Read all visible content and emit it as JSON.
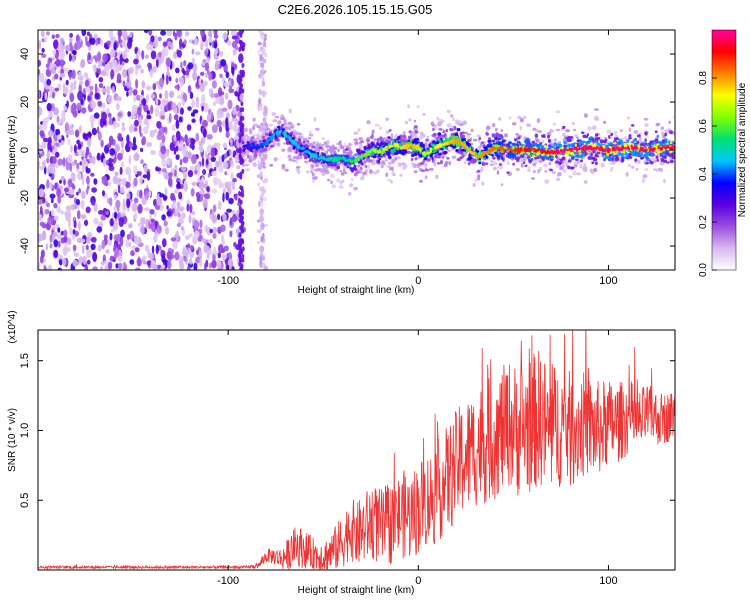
{
  "title": "C2E6.2026.105.15.15.G05",
  "chart_data": [
    {
      "type": "heatmap",
      "name": "spectrogram",
      "xlabel": "Height of straight line (km)",
      "ylabel": "Frequency (Hz)",
      "xlim": [
        -200,
        135
      ],
      "ylim": [
        -50,
        50
      ],
      "xticks": [
        -100,
        0,
        100
      ],
      "xtick_labels": [
        "-100",
        "0",
        "100"
      ],
      "yticks": [
        -40,
        -20,
        0,
        20,
        40
      ],
      "ytick_labels": [
        "-40",
        "-20",
        "0",
        "20",
        "40"
      ],
      "noise_region_x": [
        -200,
        -92
      ],
      "noise_column_x": [
        -84,
        -80
      ],
      "ridge": {
        "x": [
          -92,
          -88,
          -84,
          -80,
          -76,
          -72,
          -68,
          -64,
          -60,
          -56,
          -52,
          -48,
          -44,
          -40,
          -36,
          -32,
          -28,
          -24,
          -20,
          -16,
          -12,
          -8,
          -4,
          0,
          4,
          8,
          12,
          16,
          20,
          24,
          28,
          32,
          36,
          40,
          50,
          60,
          70,
          80,
          90,
          100,
          110,
          120,
          130,
          135
        ],
        "freq": [
          1,
          2,
          1,
          3,
          6,
          8,
          5,
          2,
          0,
          -2,
          -3,
          -4,
          -4,
          -3,
          -5,
          -4,
          -2,
          0,
          -1,
          1,
          2,
          1,
          2,
          1,
          -2,
          1,
          2,
          3,
          4,
          2,
          -1,
          -3,
          -1,
          1,
          0,
          0,
          -1,
          0,
          1,
          0,
          1,
          0,
          1,
          1
        ],
        "amplitude": [
          0.35,
          0.4,
          0.38,
          0.42,
          0.45,
          0.48,
          0.5,
          0.45,
          0.45,
          0.5,
          0.48,
          0.5,
          0.55,
          0.52,
          0.55,
          0.6,
          0.62,
          0.65,
          0.7,
          0.68,
          0.72,
          0.75,
          0.78,
          0.75,
          0.7,
          0.74,
          0.72,
          0.76,
          0.8,
          0.78,
          0.76,
          0.8,
          0.82,
          0.84,
          0.88,
          0.92,
          0.95,
          0.97,
          0.97,
          0.96,
          0.97,
          0.96,
          0.95,
          0.95
        ]
      },
      "colorbar": {
        "label": "Normalized spectral amplitude",
        "range": [
          0.0,
          1.0
        ],
        "ticks": [
          0.0,
          0.2,
          0.4,
          0.6,
          0.8
        ],
        "tick_labels": [
          "0.0",
          "0.2",
          "0.4",
          "0.6",
          "0.8"
        ],
        "colors": [
          "#ffffff",
          "#d8b8f0",
          "#9b4de0",
          "#5a00e0",
          "#0000ff",
          "#00c8ff",
          "#00e070",
          "#80ff00",
          "#ffff00",
          "#ff8000",
          "#ff0000",
          "#ff00a0"
        ]
      }
    },
    {
      "type": "line",
      "name": "snr",
      "xlabel": "Height of straight line (km)",
      "ylabel": "SNR (10 * v/v)",
      "y_multiplier": "(x10^4)",
      "xlim": [
        -200,
        135
      ],
      "ylim": [
        0,
        1.72
      ],
      "xticks": [
        -100,
        0,
        100
      ],
      "xtick_labels": [
        "-100",
        "0",
        "100"
      ],
      "yticks": [
        0.5,
        1.0,
        1.5
      ],
      "ytick_labels": [
        "0.5",
        "1.0",
        "1.5"
      ],
      "color": "#ee3333",
      "x": [
        -200,
        -180,
        -160,
        -140,
        -120,
        -100,
        -90,
        -84,
        -80,
        -76,
        -72,
        -68,
        -64,
        -60,
        -56,
        -52,
        -48,
        -44,
        -40,
        -36,
        -32,
        -28,
        -24,
        -20,
        -16,
        -12,
        -8,
        -4,
        0,
        4,
        8,
        12,
        16,
        20,
        24,
        28,
        32,
        36,
        40,
        44,
        48,
        52,
        56,
        60,
        64,
        68,
        72,
        76,
        80,
        84,
        88,
        92,
        96,
        100,
        104,
        108,
        112,
        116,
        120,
        124,
        128,
        132,
        135
      ],
      "y": [
        0.02,
        0.02,
        0.02,
        0.02,
        0.02,
        0.02,
        0.02,
        0.03,
        0.1,
        0.1,
        0.08,
        0.12,
        0.18,
        0.15,
        0.12,
        0.1,
        0.1,
        0.15,
        0.2,
        0.3,
        0.25,
        0.3,
        0.35,
        0.3,
        0.32,
        0.36,
        0.4,
        0.38,
        0.45,
        0.5,
        0.52,
        0.6,
        0.65,
        0.75,
        0.8,
        0.85,
        0.9,
        0.92,
        0.95,
        1.0,
        1.05,
        1.0,
        1.02,
        1.05,
        1.1,
        1.0,
        1.02,
        1.05,
        1.0,
        1.02,
        1.05,
        1.0,
        1.02,
        1.05,
        1.05,
        1.08,
        1.1,
        1.05,
        1.12,
        1.1,
        1.08,
        1.1,
        1.12
      ],
      "noise_band": [
        0.01,
        0.01,
        0.01,
        0.01,
        0.01,
        0.01,
        0.01,
        0.02,
        0.05,
        0.06,
        0.08,
        0.12,
        0.15,
        0.14,
        0.12,
        0.12,
        0.14,
        0.16,
        0.2,
        0.22,
        0.24,
        0.26,
        0.28,
        0.28,
        0.3,
        0.3,
        0.32,
        0.32,
        0.34,
        0.34,
        0.36,
        0.38,
        0.4,
        0.4,
        0.42,
        0.42,
        0.44,
        0.45,
        0.45,
        0.46,
        0.46,
        0.48,
        0.48,
        0.5,
        0.5,
        0.48,
        0.46,
        0.44,
        0.42,
        0.4,
        0.38,
        0.36,
        0.34,
        0.32,
        0.3,
        0.28,
        0.26,
        0.24,
        0.22,
        0.2,
        0.2,
        0.18,
        0.18
      ]
    }
  ]
}
